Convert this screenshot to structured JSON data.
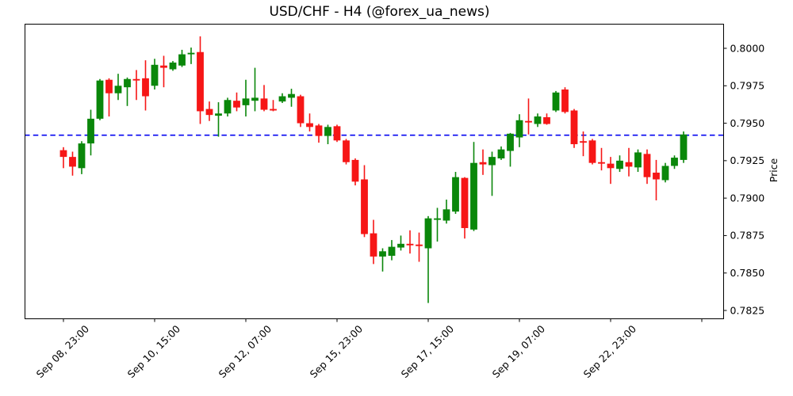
{
  "chart_data": {
    "type": "candlestick",
    "title": "USD/CHF - H4 (@forex_ua_news)",
    "symbol": "USD/CHF",
    "timeframe": "H4",
    "source_handle": "@forex_ua_news",
    "ylabel": "Price",
    "grid": false,
    "ylim": [
      0.7819,
      0.8016
    ],
    "y_ticks": [
      0.8,
      0.7975,
      0.795,
      0.7925,
      0.79,
      0.7875,
      0.785,
      0.7825
    ],
    "x_ticks": {
      "positions": [
        0,
        10,
        20,
        30,
        40,
        50,
        60,
        70
      ],
      "labels": [
        "Sep 08, 23:00",
        "Sep 10, 15:00",
        "Sep 12, 07:00",
        "Sep 15, 23:00",
        "Sep 17, 15:00",
        "Sep 19, 07:00",
        "Sep 22, 23:00",
        ""
      ]
    },
    "hline": {
      "value": 0.7942,
      "color": "#0404f0",
      "style": "dashed"
    },
    "colors": {
      "up": "#0a870a",
      "down": "#f61616"
    },
    "ohlc_order": [
      "open",
      "high",
      "low",
      "close"
    ],
    "candles": [
      [
        0.7932,
        0.7934,
        0.792,
        0.79275
      ],
      [
        0.79275,
        0.7931,
        0.7915,
        0.7921
      ],
      [
        0.792,
        0.7938,
        0.7916,
        0.79365
      ],
      [
        0.79365,
        0.7959,
        0.79285,
        0.7953
      ],
      [
        0.7953,
        0.79795,
        0.7952,
        0.79785
      ],
      [
        0.7979,
        0.798,
        0.79545,
        0.797
      ],
      [
        0.797,
        0.7983,
        0.79655,
        0.7975
      ],
      [
        0.7974,
        0.79805,
        0.79615,
        0.79795
      ],
      [
        0.79795,
        0.79855,
        0.79655,
        0.79785
      ],
      [
        0.798,
        0.7992,
        0.79585,
        0.7968
      ],
      [
        0.7975,
        0.7993,
        0.79725,
        0.7989
      ],
      [
        0.79885,
        0.7995,
        0.7974,
        0.7987
      ],
      [
        0.7986,
        0.79915,
        0.7985,
        0.79905
      ],
      [
        0.79885,
        0.7999,
        0.79875,
        0.7996
      ],
      [
        0.7996,
        0.80005,
        0.79895,
        0.7997
      ],
      [
        0.79975,
        0.8008,
        0.79495,
        0.7958
      ],
      [
        0.79595,
        0.79645,
        0.79515,
        0.79555
      ],
      [
        0.7955,
        0.7964,
        0.7941,
        0.79565
      ],
      [
        0.79565,
        0.7967,
        0.79545,
        0.79655
      ],
      [
        0.7965,
        0.79705,
        0.7958,
        0.79605
      ],
      [
        0.7962,
        0.7979,
        0.79545,
        0.79665
      ],
      [
        0.7965,
        0.7987,
        0.7958,
        0.7967
      ],
      [
        0.79665,
        0.79755,
        0.7958,
        0.7959
      ],
      [
        0.79595,
        0.79655,
        0.7958,
        0.79585
      ],
      [
        0.79645,
        0.797,
        0.79635,
        0.7968
      ],
      [
        0.7967,
        0.7973,
        0.7961,
        0.79695
      ],
      [
        0.7968,
        0.7969,
        0.79475,
        0.795
      ],
      [
        0.795,
        0.79565,
        0.79445,
        0.79475
      ],
      [
        0.79485,
        0.79495,
        0.7937,
        0.79415
      ],
      [
        0.79415,
        0.7949,
        0.7936,
        0.79475
      ],
      [
        0.7948,
        0.7949,
        0.79375,
        0.79385
      ],
      [
        0.79385,
        0.79395,
        0.79225,
        0.7924
      ],
      [
        0.79255,
        0.79265,
        0.79085,
        0.7911
      ],
      [
        0.79125,
        0.7922,
        0.7874,
        0.7876
      ],
      [
        0.78765,
        0.78855,
        0.7856,
        0.7861
      ],
      [
        0.7861,
        0.78665,
        0.7851,
        0.78645
      ],
      [
        0.78615,
        0.7872,
        0.78585,
        0.78675
      ],
      [
        0.7867,
        0.7875,
        0.7865,
        0.78695
      ],
      [
        0.78695,
        0.78785,
        0.7863,
        0.78685
      ],
      [
        0.7869,
        0.7877,
        0.78575,
        0.7868
      ],
      [
        0.78665,
        0.7888,
        0.783,
        0.78865
      ],
      [
        0.78855,
        0.78935,
        0.7871,
        0.78865
      ],
      [
        0.7885,
        0.7899,
        0.7883,
        0.78925
      ],
      [
        0.7891,
        0.79175,
        0.78895,
        0.7914
      ],
      [
        0.79135,
        0.7914,
        0.7873,
        0.788
      ],
      [
        0.7879,
        0.79375,
        0.7878,
        0.79235
      ],
      [
        0.7924,
        0.79325,
        0.79155,
        0.79225
      ],
      [
        0.7922,
        0.7931,
        0.79015,
        0.79275
      ],
      [
        0.79265,
        0.79345,
        0.79255,
        0.79325
      ],
      [
        0.79315,
        0.79435,
        0.7921,
        0.7943
      ],
      [
        0.79405,
        0.7956,
        0.7934,
        0.7952
      ],
      [
        0.79515,
        0.79665,
        0.79425,
        0.79505
      ],
      [
        0.79495,
        0.79565,
        0.79475,
        0.79545
      ],
      [
        0.7954,
        0.79565,
        0.7949,
        0.79495
      ],
      [
        0.79585,
        0.79715,
        0.79575,
        0.79705
      ],
      [
        0.79725,
        0.7974,
        0.79565,
        0.79575
      ],
      [
        0.79585,
        0.79595,
        0.79335,
        0.7936
      ],
      [
        0.7938,
        0.79445,
        0.7928,
        0.7937
      ],
      [
        0.79385,
        0.79395,
        0.79225,
        0.79235
      ],
      [
        0.7924,
        0.79335,
        0.79185,
        0.7923
      ],
      [
        0.7923,
        0.79275,
        0.79095,
        0.792
      ],
      [
        0.79195,
        0.79285,
        0.79175,
        0.7925
      ],
      [
        0.7924,
        0.79335,
        0.79145,
        0.7921
      ],
      [
        0.79205,
        0.79325,
        0.79175,
        0.79305
      ],
      [
        0.79295,
        0.79325,
        0.79095,
        0.7914
      ],
      [
        0.7917,
        0.79255,
        0.78985,
        0.79125
      ],
      [
        0.7912,
        0.79235,
        0.79105,
        0.79215
      ],
      [
        0.79215,
        0.79285,
        0.79195,
        0.7927
      ],
      [
        0.79255,
        0.79445,
        0.79235,
        0.79425
      ]
    ]
  }
}
